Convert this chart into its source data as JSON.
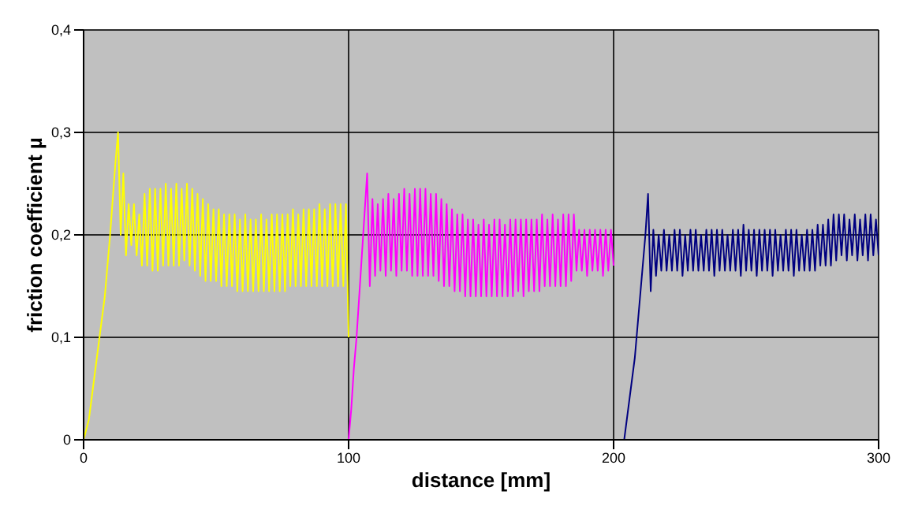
{
  "chart_data": {
    "type": "line",
    "xlabel": "distance [mm]",
    "ylabel": "friction coefficient  µ",
    "xlim": [
      0,
      300
    ],
    "xticks": [
      0,
      100,
      200,
      300
    ],
    "ylim": [
      0,
      0.4
    ],
    "yticks": [
      {
        "value": 0,
        "label": "0"
      },
      {
        "value": 0.1,
        "label": "0,1"
      },
      {
        "value": 0.2,
        "label": "0,2"
      },
      {
        "value": 0.3,
        "label": "0,3"
      },
      {
        "value": 0.4,
        "label": "0,4"
      }
    ],
    "grid": true,
    "marker": "none",
    "line_style": "solid",
    "series": [
      {
        "color": "#ffff00",
        "x": [
          0,
          2,
          4,
          6,
          8,
          10,
          12,
          13,
          14,
          15,
          16,
          17,
          18,
          19,
          20,
          21,
          22,
          23,
          24,
          25,
          26,
          27,
          28,
          29,
          30,
          31,
          32,
          33,
          34,
          35,
          36,
          37,
          38,
          39,
          40,
          41,
          42,
          43,
          44,
          45,
          46,
          47,
          48,
          49,
          50,
          51,
          52,
          53,
          54,
          55,
          56,
          57,
          58,
          59,
          60,
          61,
          62,
          63,
          64,
          65,
          66,
          67,
          68,
          69,
          70,
          71,
          72,
          73,
          74,
          75,
          76,
          77,
          78,
          79,
          80,
          81,
          82,
          83,
          84,
          85,
          86,
          87,
          88,
          89,
          90,
          91,
          92,
          93,
          94,
          95,
          96,
          97,
          98,
          99,
          100
        ],
        "values": [
          0,
          0.02,
          0.06,
          0.1,
          0.14,
          0.2,
          0.27,
          0.3,
          0.2,
          0.26,
          0.18,
          0.23,
          0.19,
          0.23,
          0.18,
          0.22,
          0.17,
          0.24,
          0.17,
          0.245,
          0.165,
          0.245,
          0.165,
          0.245,
          0.17,
          0.25,
          0.17,
          0.245,
          0.17,
          0.25,
          0.17,
          0.245,
          0.175,
          0.25,
          0.17,
          0.245,
          0.165,
          0.24,
          0.16,
          0.235,
          0.155,
          0.23,
          0.155,
          0.225,
          0.155,
          0.225,
          0.15,
          0.22,
          0.15,
          0.22,
          0.15,
          0.22,
          0.145,
          0.215,
          0.145,
          0.22,
          0.145,
          0.215,
          0.145,
          0.215,
          0.145,
          0.22,
          0.145,
          0.215,
          0.145,
          0.22,
          0.145,
          0.22,
          0.145,
          0.22,
          0.145,
          0.22,
          0.15,
          0.225,
          0.15,
          0.22,
          0.15,
          0.225,
          0.15,
          0.225,
          0.15,
          0.225,
          0.15,
          0.23,
          0.15,
          0.225,
          0.15,
          0.23,
          0.15,
          0.23,
          0.15,
          0.23,
          0.15,
          0.23,
          0.1
        ]
      },
      {
        "color": "#ff00ff",
        "x": [
          100,
          101,
          102,
          103,
          104,
          105,
          106,
          107,
          108,
          109,
          110,
          111,
          112,
          113,
          114,
          115,
          116,
          117,
          118,
          119,
          120,
          121,
          122,
          123,
          124,
          125,
          126,
          127,
          128,
          129,
          130,
          131,
          132,
          133,
          134,
          135,
          136,
          137,
          138,
          139,
          140,
          141,
          142,
          143,
          144,
          145,
          146,
          147,
          148,
          149,
          150,
          151,
          152,
          153,
          154,
          155,
          156,
          157,
          158,
          159,
          160,
          161,
          162,
          163,
          164,
          165,
          166,
          167,
          168,
          169,
          170,
          171,
          172,
          173,
          174,
          175,
          176,
          177,
          178,
          179,
          180,
          181,
          182,
          183,
          184,
          185,
          186,
          187,
          188,
          189,
          190,
          191,
          192,
          193,
          194,
          195,
          196,
          197,
          198,
          199,
          200
        ],
        "values": [
          0,
          0.03,
          0.07,
          0.1,
          0.14,
          0.18,
          0.22,
          0.26,
          0.15,
          0.235,
          0.16,
          0.23,
          0.165,
          0.235,
          0.16,
          0.24,
          0.165,
          0.235,
          0.16,
          0.24,
          0.165,
          0.245,
          0.165,
          0.24,
          0.16,
          0.245,
          0.16,
          0.245,
          0.16,
          0.245,
          0.16,
          0.24,
          0.16,
          0.24,
          0.155,
          0.235,
          0.15,
          0.23,
          0.15,
          0.225,
          0.145,
          0.22,
          0.145,
          0.22,
          0.14,
          0.215,
          0.14,
          0.215,
          0.14,
          0.21,
          0.14,
          0.215,
          0.14,
          0.21,
          0.14,
          0.215,
          0.14,
          0.215,
          0.14,
          0.21,
          0.14,
          0.215,
          0.14,
          0.215,
          0.145,
          0.215,
          0.14,
          0.215,
          0.145,
          0.215,
          0.145,
          0.215,
          0.145,
          0.22,
          0.15,
          0.215,
          0.15,
          0.22,
          0.15,
          0.215,
          0.15,
          0.22,
          0.15,
          0.22,
          0.155,
          0.22,
          0.165,
          0.205,
          0.165,
          0.205,
          0.16,
          0.205,
          0.165,
          0.205,
          0.165,
          0.205,
          0.16,
          0.205,
          0.165,
          0.205,
          0.17
        ]
      },
      {
        "color": "#000080",
        "x": [
          204,
          206,
          208,
          209,
          210,
          211,
          212,
          213,
          214,
          215,
          216,
          217,
          218,
          219,
          220,
          221,
          222,
          223,
          224,
          225,
          226,
          227,
          228,
          229,
          230,
          231,
          232,
          233,
          234,
          235,
          236,
          237,
          238,
          239,
          240,
          241,
          242,
          243,
          244,
          245,
          246,
          247,
          248,
          249,
          250,
          251,
          252,
          253,
          254,
          255,
          256,
          257,
          258,
          259,
          260,
          261,
          262,
          263,
          264,
          265,
          266,
          267,
          268,
          269,
          270,
          271,
          272,
          273,
          274,
          275,
          276,
          277,
          278,
          279,
          280,
          281,
          282,
          283,
          284,
          285,
          286,
          287,
          288,
          289,
          290,
          291,
          292,
          293,
          294,
          295,
          296,
          297,
          298,
          299,
          300
        ],
        "values": [
          0,
          0.04,
          0.08,
          0.11,
          0.14,
          0.17,
          0.2,
          0.24,
          0.145,
          0.205,
          0.16,
          0.2,
          0.165,
          0.205,
          0.165,
          0.2,
          0.165,
          0.205,
          0.165,
          0.205,
          0.16,
          0.2,
          0.165,
          0.205,
          0.165,
          0.205,
          0.165,
          0.2,
          0.165,
          0.205,
          0.165,
          0.205,
          0.16,
          0.205,
          0.165,
          0.205,
          0.165,
          0.2,
          0.165,
          0.205,
          0.165,
          0.205,
          0.16,
          0.21,
          0.165,
          0.205,
          0.165,
          0.205,
          0.16,
          0.205,
          0.165,
          0.205,
          0.165,
          0.205,
          0.16,
          0.205,
          0.165,
          0.2,
          0.165,
          0.205,
          0.165,
          0.205,
          0.16,
          0.205,
          0.165,
          0.2,
          0.165,
          0.205,
          0.165,
          0.205,
          0.165,
          0.21,
          0.17,
          0.21,
          0.17,
          0.215,
          0.17,
          0.22,
          0.175,
          0.22,
          0.18,
          0.22,
          0.175,
          0.215,
          0.18,
          0.22,
          0.175,
          0.215,
          0.18,
          0.22,
          0.175,
          0.22,
          0.18,
          0.215,
          0.18
        ]
      }
    ]
  }
}
